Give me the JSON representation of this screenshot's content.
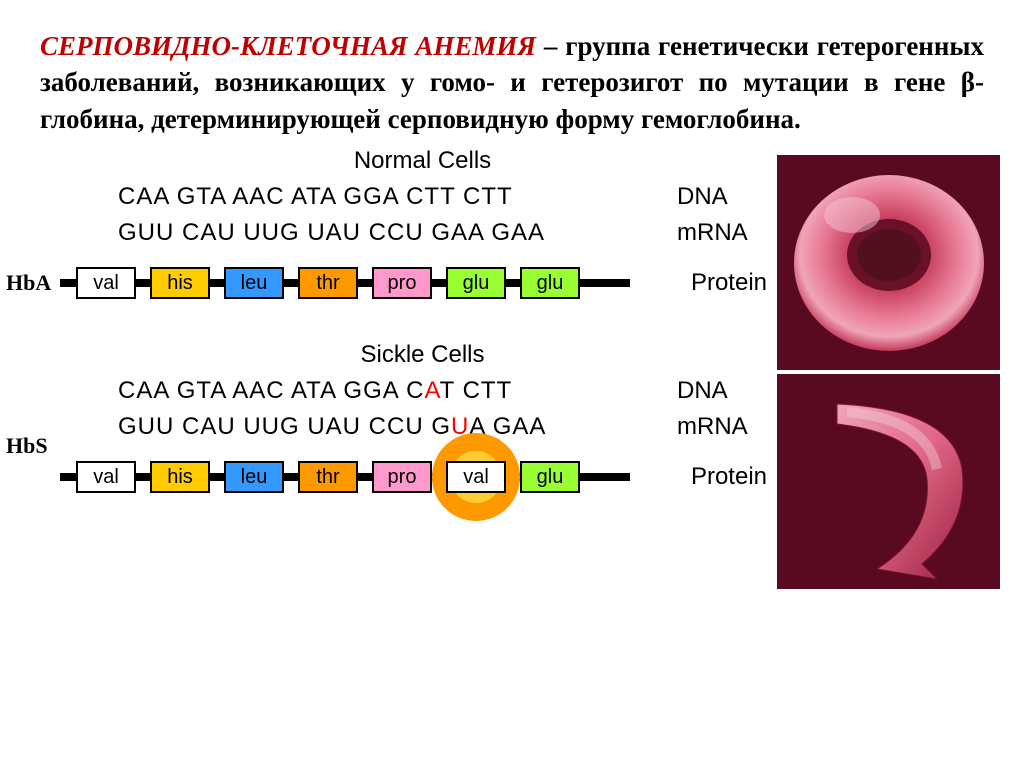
{
  "header": {
    "title": "СЕРПОВИДНО-КЛЕТОЧНАЯ АНЕМИЯ",
    "definition": " – группа генетически гетерогенных заболеваний, возникающих у гомо- и гетерозигот по мутации в гене β-глобина, детерминирующей серповидную форму гемоглобина."
  },
  "colors": {
    "title_color": "#c00000",
    "text_color": "#000000",
    "mutation_color": "#ff0000",
    "chain_line": "#000000",
    "aa_border": "#000000",
    "circle_outer": "#ff9900",
    "circle_inner": "#ffcc33",
    "cell_bg": "#d94a6a",
    "cell_shadow": "#8a1030"
  },
  "aa_colors": {
    "val": "#ffffff",
    "his": "#ffcc00",
    "leu": "#3399ff",
    "thr": "#ff9900",
    "pro": "#ff99cc",
    "glu": "#99ff33"
  },
  "normal": {
    "title": "Normal Cells",
    "dna": "CAA  GTA  AAC  ATA  GGA  CTT  CTT",
    "mrna": "GUU  CAU  UUG  UAU  CCU  GAA  GAA",
    "dna_label": "DNA",
    "mrna_label": "mRNA",
    "protein_label": "Protein",
    "hb_label": "HbA",
    "aa": [
      "val",
      "his",
      "leu",
      "thr",
      "pro",
      "glu",
      "glu"
    ]
  },
  "sickle": {
    "title": "Sickle Cells",
    "dna_pre": "CAA  GTA  AAC  ATA  GGA  C",
    "dna_mut": "A",
    "dna_post": "T  CTT",
    "mrna_pre": "GUU  CAU  UUG  UAU  CCU  G",
    "mrna_mut": "U",
    "mrna_post": "A  GAA",
    "dna_label": "DNA",
    "mrna_label": "mRNA",
    "protein_label": "Protein",
    "hb_label": "HbS",
    "aa": [
      "val",
      "his",
      "leu",
      "thr",
      "pro",
      "val",
      "glu"
    ],
    "mutation_index": 5
  }
}
